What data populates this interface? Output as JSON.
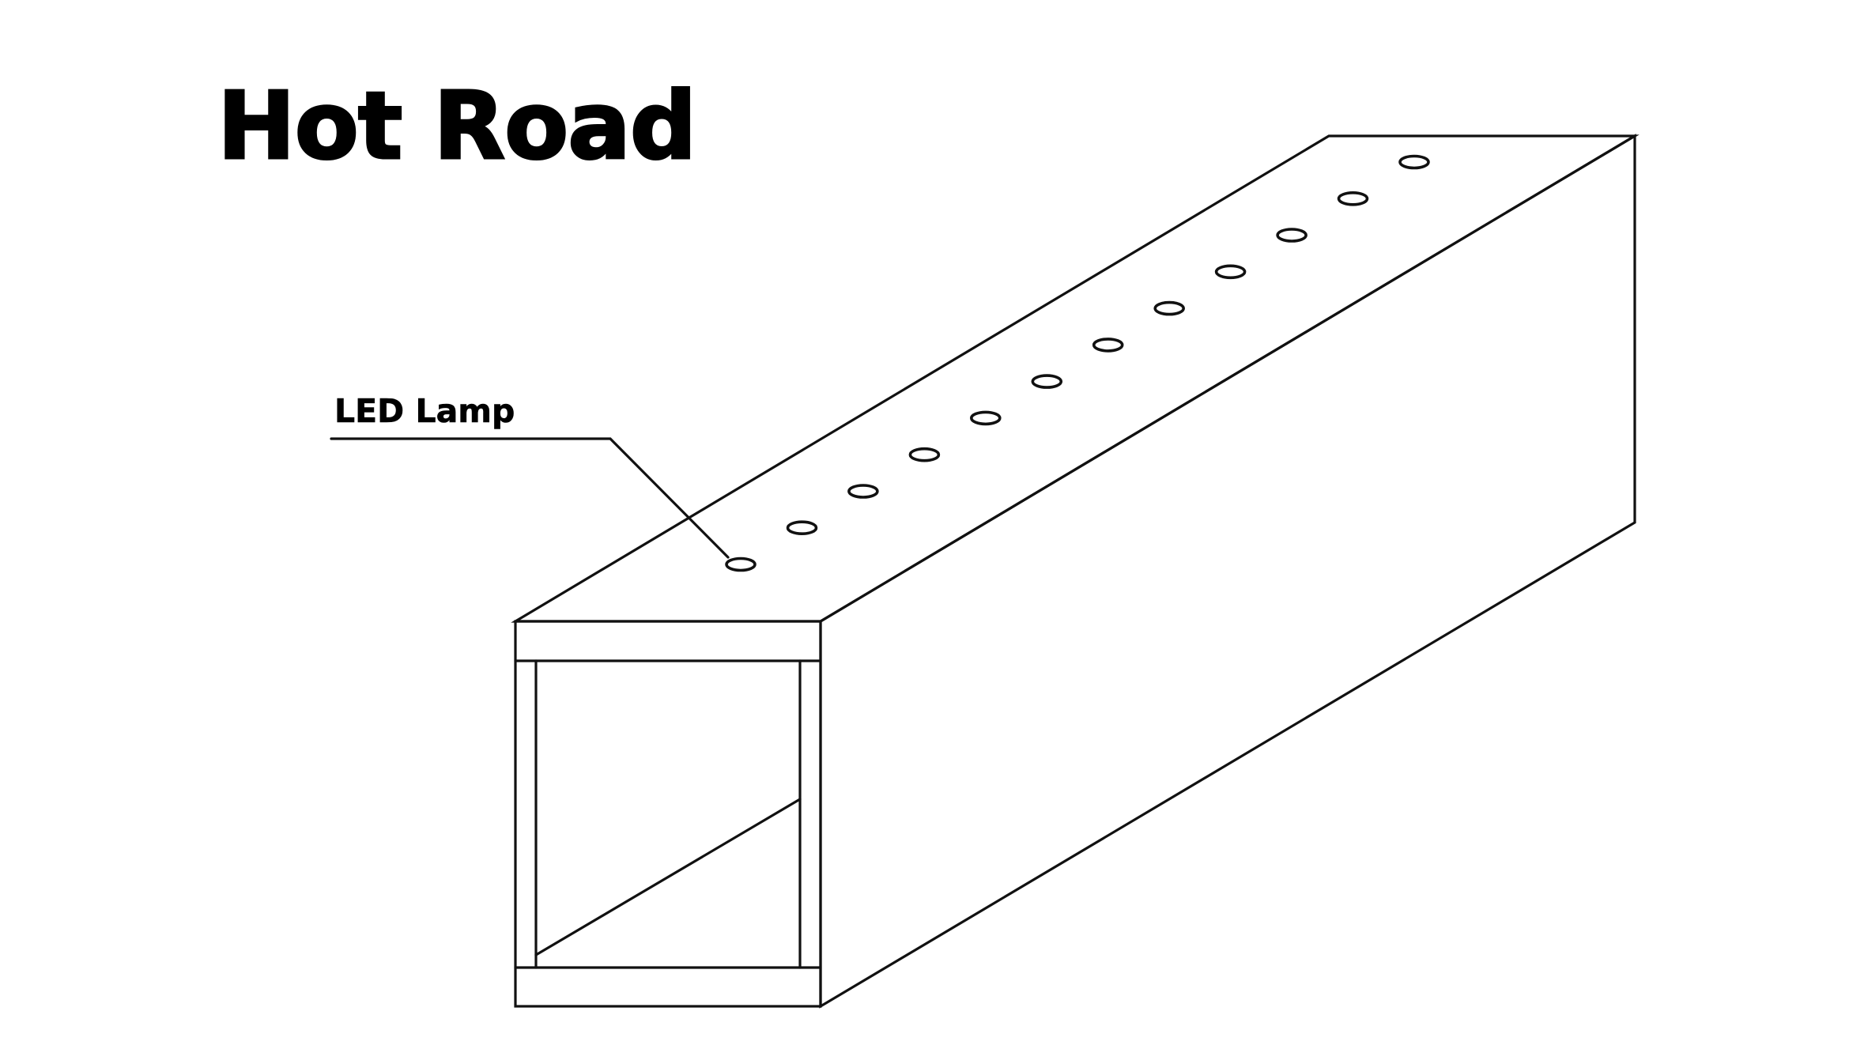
{
  "title": "Hot Road",
  "callout": {
    "label": "LED Lamp"
  },
  "lamps": {
    "count": 12
  },
  "colors": {
    "line": "#111111",
    "background": "#ffffff"
  }
}
